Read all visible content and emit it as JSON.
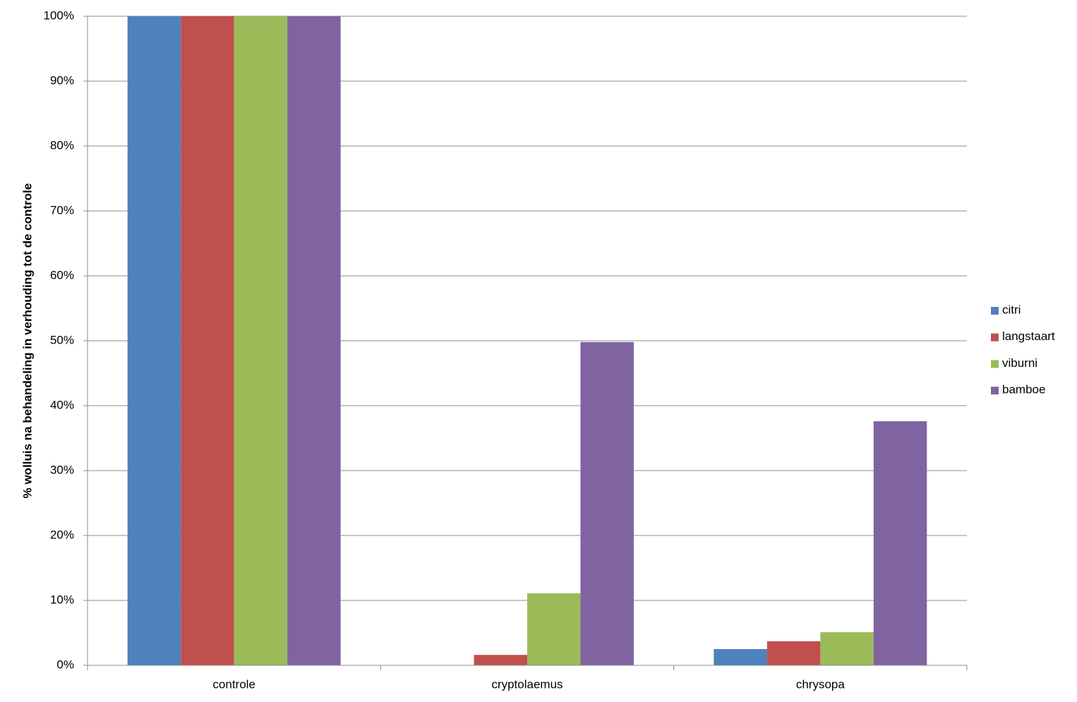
{
  "chart_data": {
    "type": "bar",
    "y_label": "% wolluis na behandeling in verhouding tot de controle",
    "categories": [
      "controle",
      "cryptolaemus",
      "chrysopa"
    ],
    "series": [
      {
        "name": "citri",
        "color": "#4f81bd",
        "values": [
          100,
          0,
          2.5
        ]
      },
      {
        "name": "langstaart",
        "color": "#c0504d",
        "values": [
          100,
          1.6,
          3.7
        ]
      },
      {
        "name": "viburni",
        "color": "#9bbb59",
        "values": [
          100,
          11.1,
          5.1
        ]
      },
      {
        "name": "bamboe",
        "color": "#8064a2",
        "values": [
          100,
          49.8,
          37.6
        ]
      }
    ],
    "ylim": [
      0,
      100
    ],
    "yticks": [
      {
        "value": 0,
        "label": "0%"
      },
      {
        "value": 10,
        "label": "10%"
      },
      {
        "value": 20,
        "label": "20%"
      },
      {
        "value": 30,
        "label": "30%"
      },
      {
        "value": 40,
        "label": "40%"
      },
      {
        "value": 50,
        "label": "50%"
      },
      {
        "value": 60,
        "label": "60%"
      },
      {
        "value": 70,
        "label": "70%"
      },
      {
        "value": 80,
        "label": "80%"
      },
      {
        "value": 90,
        "label": "90%"
      },
      {
        "value": 100,
        "label": "100%"
      }
    ],
    "grid": true,
    "legend": "right"
  }
}
